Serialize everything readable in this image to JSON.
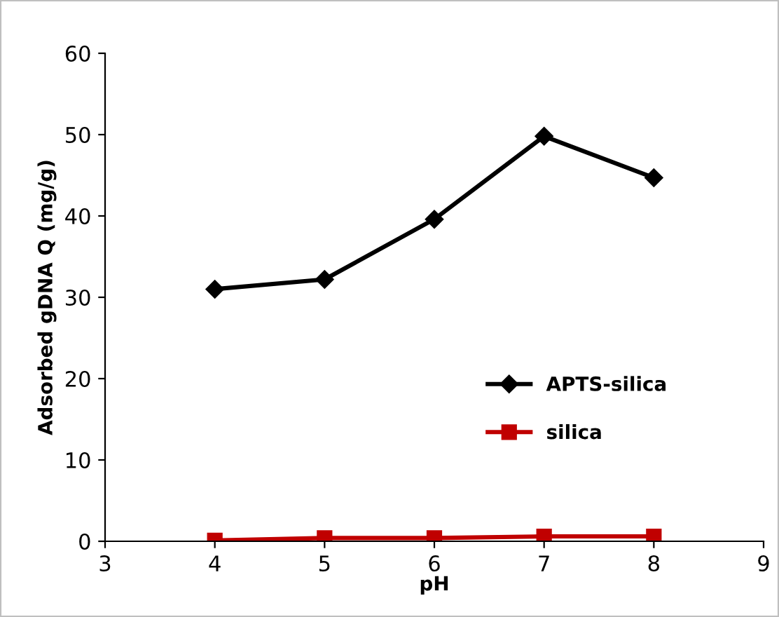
{
  "chart_data": {
    "type": "line",
    "xlabel": "pH",
    "ylabel": "Adsorbed gDNA Q (mg/g)",
    "x": [
      4,
      5,
      6,
      7,
      8
    ],
    "series": [
      {
        "name": "APTS-silica",
        "color": "#000000",
        "marker": "diamond",
        "values": [
          31.0,
          32.2,
          39.6,
          49.8,
          44.7
        ]
      },
      {
        "name": "silica",
        "color": "#c00000",
        "marker": "square",
        "values": [
          0.1,
          0.4,
          0.4,
          0.6,
          0.6
        ]
      }
    ],
    "xlim": [
      3,
      9
    ],
    "xticks": [
      3,
      4,
      5,
      6,
      7,
      8,
      9
    ],
    "ylim": [
      0,
      60
    ],
    "yticks": [
      0,
      10,
      20,
      30,
      40,
      50,
      60
    ],
    "grid": false,
    "legend": "right",
    "line_style": "solid"
  }
}
